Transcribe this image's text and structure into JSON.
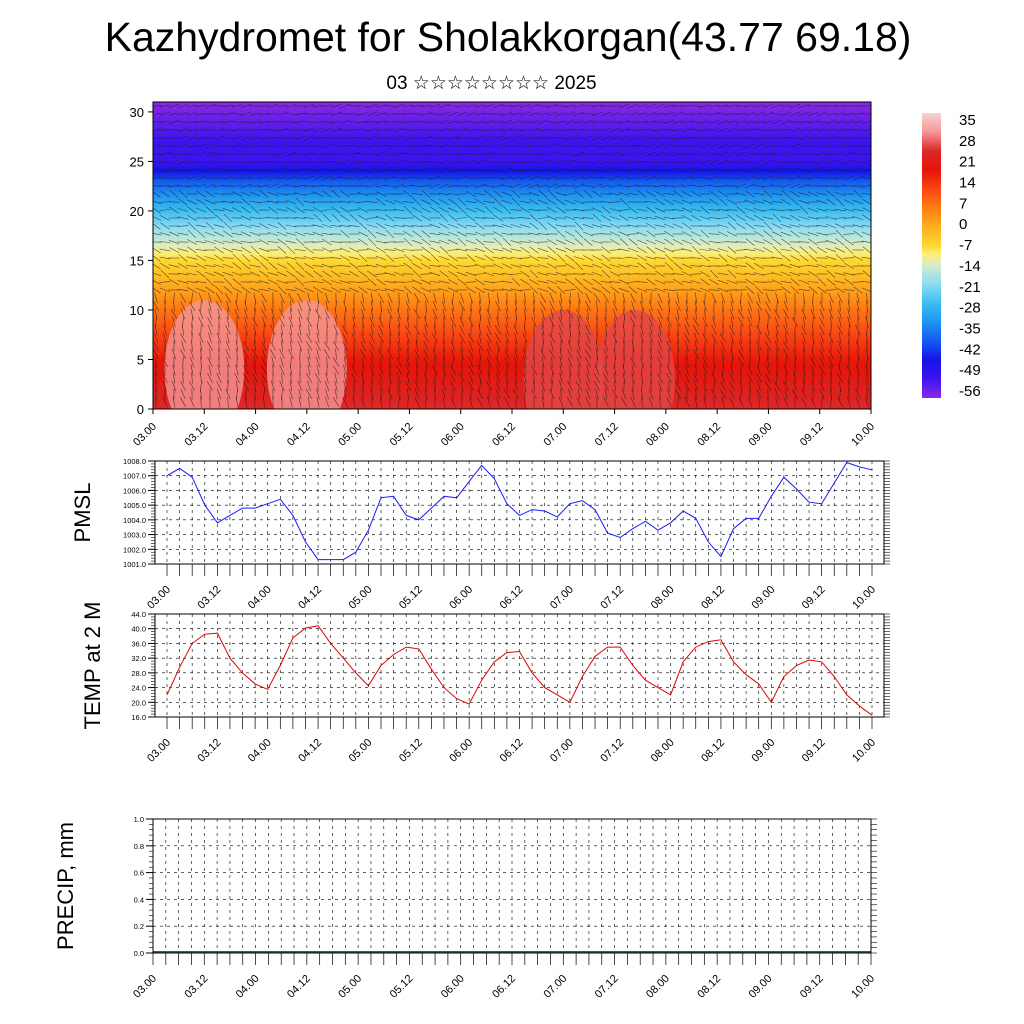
{
  "title": "Kazhydromet for Sholakkorgan(43.77 69.18)",
  "subtitle": "03 ☆☆☆☆☆☆☆☆ 2025",
  "colors": {
    "pmsl_line": "#1a1aff",
    "temp_line": "#e00000",
    "grid": "#000000"
  },
  "chart_data": [
    {
      "name": "cross-section",
      "type": "heatmap",
      "xlabel": "",
      "ylabel": "",
      "x_ticks": [
        "03.00",
        "03.12",
        "04.00",
        "04.12",
        "05.00",
        "05.12",
        "06.00",
        "06.12",
        "07.00",
        "07.12",
        "08.00",
        "08.12",
        "09.00",
        "09.12",
        "10.00"
      ],
      "y_ticks": [
        0,
        5,
        10,
        15,
        20,
        25,
        30
      ],
      "ylim": [
        0,
        31
      ],
      "colorbar_labels": [
        "35",
        "28",
        "21",
        "14",
        "7",
        "0",
        "-7",
        "-14",
        "-21",
        "-28",
        "-35",
        "-42",
        "-49",
        "-56"
      ],
      "colorbar_range": [
        -63,
        42
      ],
      "temperature_profile": [
        {
          "height": 0,
          "value": 28
        },
        {
          "height": 5,
          "value": 20
        },
        {
          "height": 10,
          "value": 8
        },
        {
          "height": 15,
          "value": -7
        },
        {
          "height": 20,
          "value": -28
        },
        {
          "height": 23,
          "value": -42
        },
        {
          "height": 25,
          "value": -56
        },
        {
          "height": 27,
          "value": -56
        },
        {
          "height": 31,
          "value": -63
        }
      ],
      "warm_spots": [
        {
          "time": 0.5,
          "height": 4,
          "value": 35
        },
        {
          "time": 1.5,
          "height": 4,
          "value": 35
        },
        {
          "time": 4.0,
          "height": 3,
          "value": 30
        },
        {
          "time": 4.7,
          "height": 3,
          "value": 30
        }
      ]
    },
    {
      "name": "pmsl",
      "type": "line",
      "ylabel": "PMSL",
      "x_ticks": [
        "03.00",
        "03.12",
        "04.00",
        "04.12",
        "05.00",
        "05.12",
        "06.00",
        "06.12",
        "07.00",
        "07.12",
        "08.00",
        "08.12",
        "09.00",
        "09.12",
        "10.00"
      ],
      "y_ticks": [
        "1008.0",
        "1007.0",
        "1006.0",
        "1005.0",
        "1004.0",
        "1003.0",
        "1002.0",
        "1001.0"
      ],
      "ylim": [
        1001,
        1008
      ],
      "step_hours": 3,
      "values": [
        1007.0,
        1007.5,
        1006.9,
        1005.0,
        1003.8,
        1004.3,
        1004.8,
        1004.8,
        1005.1,
        1005.4,
        1004.3,
        1002.5,
        1001.3,
        1001.3,
        1001.3,
        1001.8,
        1003.3,
        1005.5,
        1005.6,
        1004.3,
        1004.0,
        1004.8,
        1005.6,
        1005.5,
        1006.6,
        1007.7,
        1006.8,
        1005.1,
        1004.3,
        1004.7,
        1004.6,
        1004.2,
        1005.1,
        1005.3,
        1004.7,
        1003.1,
        1002.8,
        1003.4,
        1003.9,
        1003.3,
        1003.8,
        1004.6,
        1004.1,
        1002.5,
        1001.5,
        1003.4,
        1004.1,
        1004.1,
        1005.6,
        1006.9,
        1006.1,
        1005.2,
        1005.1,
        1006.5,
        1007.9,
        1007.6,
        1007.4
      ]
    },
    {
      "name": "temp2m",
      "type": "line",
      "ylabel": "TEMP at 2 M",
      "x_ticks": [
        "03.00",
        "03.12",
        "04.00",
        "04.12",
        "05.00",
        "05.12",
        "06.00",
        "06.12",
        "07.00",
        "07.12",
        "08.00",
        "08.12",
        "09.00",
        "09.12",
        "10.00"
      ],
      "y_ticks": [
        "44.0",
        "40.0",
        "36.0",
        "32.0",
        "28.0",
        "24.0",
        "20.0",
        "16.0"
      ],
      "ylim": [
        16,
        44
      ],
      "step_hours": 3,
      "values": [
        22.0,
        29.5,
        36.0,
        38.5,
        38.8,
        32.0,
        28.0,
        25.0,
        23.5,
        30.0,
        37.5,
        40.2,
        40.8,
        36.0,
        32.0,
        28.0,
        24.5,
        30.0,
        33.0,
        35.0,
        34.5,
        29.0,
        24.0,
        21.0,
        19.5,
        26.0,
        31.0,
        33.5,
        33.8,
        28.0,
        24.0,
        22.0,
        20.0,
        27.0,
        32.5,
        35.0,
        35.0,
        30.0,
        26.0,
        24.0,
        22.0,
        31.0,
        35.0,
        36.5,
        37.0,
        31.0,
        27.5,
        25.0,
        20.0,
        27.0,
        30.0,
        31.5,
        31.0,
        27.0,
        22.0,
        19.0,
        16.5
      ]
    },
    {
      "name": "precip",
      "type": "bar",
      "ylabel": "PRECIP, mm",
      "x_ticks": [
        "03.00",
        "03.12",
        "04.00",
        "04.12",
        "05.00",
        "05.12",
        "06.00",
        "06.12",
        "07.00",
        "07.12",
        "08.00",
        "08.12",
        "09.00",
        "09.12",
        "10.00"
      ],
      "y_ticks": [
        "1.0",
        "0.8",
        "0.6",
        "0.4",
        "0.2",
        "0.0"
      ],
      "ylim": [
        0,
        1
      ],
      "step_hours": 3,
      "values": [
        0,
        0,
        0,
        0,
        0,
        0,
        0,
        0,
        0,
        0,
        0,
        0,
        0,
        0,
        0,
        0,
        0,
        0,
        0,
        0,
        0,
        0,
        0,
        0,
        0,
        0,
        0,
        0,
        0,
        0,
        0,
        0,
        0,
        0,
        0,
        0,
        0,
        0,
        0,
        0,
        0,
        0,
        0,
        0,
        0,
        0,
        0,
        0,
        0,
        0,
        0,
        0,
        0,
        0,
        0,
        0,
        0
      ]
    }
  ]
}
